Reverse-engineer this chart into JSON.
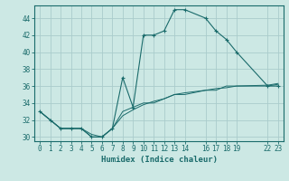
{
  "xlabel": "Humidex (Indice chaleur)",
  "bg_color": "#cce8e4",
  "grid_color": "#aacccc",
  "line_color": "#1a6b6b",
  "xlim": [
    -0.5,
    23.5
  ],
  "ylim": [
    29.5,
    45.5
  ],
  "xticks": [
    0,
    1,
    2,
    3,
    4,
    5,
    6,
    7,
    8,
    9,
    10,
    11,
    12,
    13,
    14,
    16,
    17,
    18,
    19,
    22,
    23
  ],
  "yticks": [
    30,
    32,
    34,
    36,
    38,
    40,
    42,
    44
  ],
  "series1": {
    "x": [
      0,
      1,
      2,
      3,
      4,
      5,
      6,
      7,
      8,
      9,
      10,
      11,
      12,
      13,
      14,
      16,
      17,
      18,
      19,
      22,
      23
    ],
    "y": [
      33.0,
      32.0,
      31.0,
      31.0,
      31.0,
      30.0,
      30.0,
      31.0,
      37.0,
      33.5,
      42.0,
      42.0,
      42.5,
      45.0,
      45.0,
      44.0,
      42.5,
      41.5,
      40.0,
      36.0,
      36.0
    ]
  },
  "series2": {
    "x": [
      0,
      1,
      2,
      3,
      4,
      5,
      6,
      7,
      8,
      9,
      10,
      11,
      12,
      13,
      14,
      16,
      17,
      18,
      19,
      22,
      23
    ],
    "y": [
      33.0,
      32.0,
      31.0,
      31.0,
      31.0,
      30.0,
      30.0,
      31.0,
      33.0,
      33.5,
      34.0,
      34.0,
      34.5,
      35.0,
      35.0,
      35.5,
      35.5,
      36.0,
      36.0,
      36.0,
      36.2
    ]
  },
  "series3": {
    "x": [
      0,
      1,
      2,
      3,
      4,
      5,
      6,
      7,
      8,
      9,
      10,
      11,
      12,
      13,
      14,
      16,
      17,
      18,
      19,
      22,
      23
    ],
    "y": [
      33.0,
      32.0,
      31.0,
      31.0,
      31.0,
      30.3,
      30.0,
      31.0,
      32.5,
      33.2,
      33.8,
      34.2,
      34.5,
      35.0,
      35.2,
      35.5,
      35.7,
      35.8,
      36.0,
      36.1,
      36.3
    ]
  }
}
